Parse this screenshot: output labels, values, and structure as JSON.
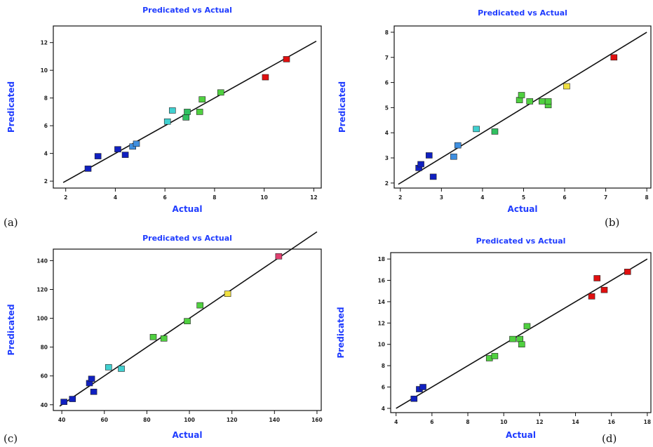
{
  "chart_data": [
    {
      "type": "scatter",
      "panel_label": "(a)",
      "title": "Predicated vs Actual",
      "xlabel": "Actual",
      "ylabel": "Predicated",
      "xlim": [
        1.5,
        12.3
      ],
      "ylim": [
        1.5,
        13.2
      ],
      "xticks": [
        2,
        4,
        6,
        8,
        10,
        12
      ],
      "yticks": [
        2,
        4,
        6,
        8,
        10,
        12
      ],
      "fit_line": [
        [
          1.9,
          1.9
        ],
        [
          12.1,
          12.1
        ]
      ],
      "points": [
        {
          "x": 2.9,
          "y": 2.9,
          "color": "#1020c0"
        },
        {
          "x": 3.3,
          "y": 3.8,
          "color": "#1020c0"
        },
        {
          "x": 4.1,
          "y": 4.3,
          "color": "#1020c0"
        },
        {
          "x": 4.4,
          "y": 3.9,
          "color": "#1020c0"
        },
        {
          "x": 4.7,
          "y": 4.5,
          "color": "#3f8fe0"
        },
        {
          "x": 4.85,
          "y": 4.7,
          "color": "#3f8fe0"
        },
        {
          "x": 6.1,
          "y": 6.3,
          "color": "#40d0d0"
        },
        {
          "x": 6.3,
          "y": 7.1,
          "color": "#40d0d0"
        },
        {
          "x": 6.85,
          "y": 6.6,
          "color": "#30c060"
        },
        {
          "x": 6.9,
          "y": 7.0,
          "color": "#30c060"
        },
        {
          "x": 7.4,
          "y": 7.0,
          "color": "#50d040"
        },
        {
          "x": 7.5,
          "y": 7.9,
          "color": "#50d040"
        },
        {
          "x": 8.25,
          "y": 8.4,
          "color": "#50d040"
        },
        {
          "x": 10.05,
          "y": 9.5,
          "color": "#e01010"
        },
        {
          "x": 10.9,
          "y": 10.8,
          "color": "#e01010"
        }
      ]
    },
    {
      "type": "scatter",
      "panel_label": "(b)",
      "title": "Predicated vs Actual",
      "xlabel": "Actual",
      "ylabel": "Predicated",
      "xlim": [
        1.85,
        8.1
      ],
      "ylim": [
        1.8,
        8.25
      ],
      "xticks": [
        2,
        3,
        4,
        5,
        6,
        7,
        8
      ],
      "yticks": [
        2,
        3,
        4,
        5,
        6,
        7,
        8
      ],
      "fit_line": [
        [
          1.95,
          1.95
        ],
        [
          8.0,
          8.0
        ]
      ],
      "points": [
        {
          "x": 2.45,
          "y": 2.6,
          "color": "#1020c0"
        },
        {
          "x": 2.5,
          "y": 2.75,
          "color": "#1020c0"
        },
        {
          "x": 2.7,
          "y": 3.1,
          "color": "#1020c0"
        },
        {
          "x": 2.8,
          "y": 2.25,
          "color": "#1020c0"
        },
        {
          "x": 3.3,
          "y": 3.05,
          "color": "#3f8fe0"
        },
        {
          "x": 3.4,
          "y": 3.5,
          "color": "#3f8fe0"
        },
        {
          "x": 3.85,
          "y": 4.15,
          "color": "#40d0d0"
        },
        {
          "x": 4.3,
          "y": 4.05,
          "color": "#30c060"
        },
        {
          "x": 4.9,
          "y": 5.3,
          "color": "#50d040"
        },
        {
          "x": 4.95,
          "y": 5.5,
          "color": "#50d040"
        },
        {
          "x": 5.15,
          "y": 5.25,
          "color": "#50d040"
        },
        {
          "x": 5.45,
          "y": 5.25,
          "color": "#50d040"
        },
        {
          "x": 5.6,
          "y": 5.1,
          "color": "#50d040"
        },
        {
          "x": 5.6,
          "y": 5.25,
          "color": "#50d040"
        },
        {
          "x": 6.05,
          "y": 5.85,
          "color": "#f0e040"
        },
        {
          "x": 7.2,
          "y": 7.0,
          "color": "#e01010"
        }
      ]
    },
    {
      "type": "scatter",
      "panel_label": "(c)",
      "title": "Predicated vs Actual",
      "xlabel": "Actual",
      "ylabel": "Predicated",
      "xlim": [
        36,
        162
      ],
      "ylim": [
        36,
        148
      ],
      "xticks": [
        40,
        60,
        80,
        100,
        120,
        140,
        160
      ],
      "yticks": [
        40,
        60,
        80,
        100,
        120,
        140
      ],
      "fit_line": [
        [
          39,
          39
        ],
        [
          160,
          160
        ]
      ],
      "points": [
        {
          "x": 41,
          "y": 42,
          "color": "#1020c0"
        },
        {
          "x": 45,
          "y": 44,
          "color": "#1020c0"
        },
        {
          "x": 53,
          "y": 55,
          "color": "#1020c0"
        },
        {
          "x": 54,
          "y": 58,
          "color": "#1020c0"
        },
        {
          "x": 55,
          "y": 49,
          "color": "#1020c0"
        },
        {
          "x": 62,
          "y": 66,
          "color": "#40d0d0"
        },
        {
          "x": 68,
          "y": 65,
          "color": "#40d0d0"
        },
        {
          "x": 83,
          "y": 87,
          "color": "#50d040"
        },
        {
          "x": 88,
          "y": 86,
          "color": "#50d040"
        },
        {
          "x": 99,
          "y": 98,
          "color": "#50d040"
        },
        {
          "x": 105,
          "y": 109,
          "color": "#50d040"
        },
        {
          "x": 118,
          "y": 117,
          "color": "#f0e040"
        },
        {
          "x": 142,
          "y": 143,
          "color": "#e04070"
        }
      ]
    },
    {
      "type": "scatter",
      "panel_label": "(d)",
      "title": "Predicated vs Actual",
      "xlabel": "Actual",
      "ylabel": "Predicated",
      "xlim": [
        3.7,
        18.2
      ],
      "ylim": [
        3.6,
        18.6
      ],
      "xticks": [
        4,
        6,
        8,
        10,
        12,
        14,
        16,
        18
      ],
      "yticks": [
        4,
        6,
        8,
        10,
        12,
        14,
        16,
        18
      ],
      "fit_line": [
        [
          4.0,
          4.0
        ],
        [
          18.0,
          18.0
        ]
      ],
      "points": [
        {
          "x": 5.0,
          "y": 4.9,
          "color": "#1020c0"
        },
        {
          "x": 5.3,
          "y": 5.8,
          "color": "#1020c0"
        },
        {
          "x": 5.5,
          "y": 6.0,
          "color": "#1020c0"
        },
        {
          "x": 9.2,
          "y": 8.7,
          "color": "#50d040"
        },
        {
          "x": 9.5,
          "y": 8.9,
          "color": "#50d040"
        },
        {
          "x": 10.5,
          "y": 10.5,
          "color": "#50d040"
        },
        {
          "x": 10.9,
          "y": 10.5,
          "color": "#50d040"
        },
        {
          "x": 11.0,
          "y": 10.0,
          "color": "#50d040"
        },
        {
          "x": 11.3,
          "y": 11.7,
          "color": "#50d040"
        },
        {
          "x": 14.9,
          "y": 14.5,
          "color": "#e01010"
        },
        {
          "x": 15.2,
          "y": 16.2,
          "color": "#e01010"
        },
        {
          "x": 15.6,
          "y": 15.1,
          "color": "#e01010"
        },
        {
          "x": 16.9,
          "y": 16.8,
          "color": "#e01010"
        }
      ]
    }
  ]
}
